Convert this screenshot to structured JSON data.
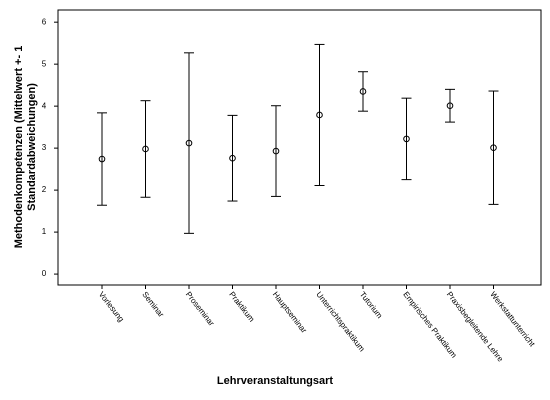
{
  "chart_data": {
    "type": "errorbar",
    "x_label": "Lehrveranstaltungsart",
    "y_label": [
      "Methodenkompetenzen (Mittelwert +- 1",
      "Standardabweichungen)"
    ],
    "categories": [
      "Vorlesung",
      "Seminar",
      "Proseminar",
      "Praktikum",
      "Hauptseminar",
      "Unterrichtspraktikum",
      "Tutorium",
      "Empirisches Praktikum",
      "Praxisbegleitende Lehre",
      "Werkstattunterricht"
    ],
    "values": [
      2.74,
      2.98,
      3.12,
      2.76,
      2.93,
      3.79,
      4.35,
      3.22,
      4.01,
      3.01
    ],
    "errors": [
      1.1,
      1.15,
      2.15,
      1.02,
      1.08,
      1.68,
      0.47,
      0.97,
      0.39,
      1.35
    ],
    "color": "#000000",
    "ylim": [
      -0.26,
      6.29
    ],
    "yticks": [
      0,
      1,
      2,
      3,
      4,
      5,
      6
    ]
  }
}
